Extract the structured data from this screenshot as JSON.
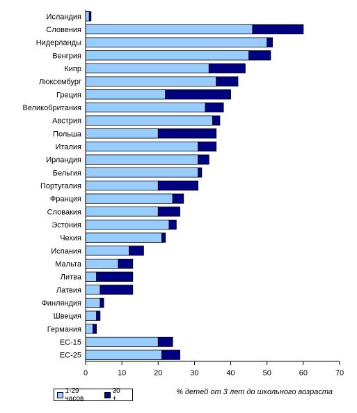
{
  "chart_data": {
    "type": "bar",
    "orientation": "horizontal",
    "stacked": true,
    "categories": [
      "Исландия",
      "Словения",
      "Нидерланды",
      "Венгрия",
      "Кипр",
      "Люксембург",
      "Греция",
      "Великобритания",
      "Австрия",
      "Польша",
      "Италия",
      "Ирландия",
      "Бельгия",
      "Португалия",
      "Франция",
      "Словакия",
      "Эстония",
      "Чехия",
      "Испания",
      "Мальта",
      "Литва",
      "Латвия",
      "Финляндия",
      "Швеция",
      "Германия",
      "ЕС-15",
      "ЕС-25"
    ],
    "series": [
      {
        "name": "1-29 часов",
        "color": "#99ccff",
        "values": [
          1,
          46,
          50,
          45,
          34,
          36,
          22,
          33,
          35,
          20,
          31,
          31,
          31,
          20,
          24,
          20,
          23,
          21,
          12,
          9,
          3,
          4,
          4,
          3,
          2,
          20,
          21
        ]
      },
      {
        "name": "30 +",
        "color": "#000080",
        "values": [
          0.5,
          14,
          1.5,
          6,
          10,
          6,
          18,
          5,
          2,
          16,
          5,
          3,
          1,
          11,
          3,
          6,
          2,
          1,
          4,
          4,
          10,
          9,
          1,
          1,
          1,
          4,
          5
        ]
      }
    ],
    "xlabel": "% детей от 3 лет до школьного возраста",
    "ylabel": "",
    "xlim": [
      0,
      70
    ],
    "xticks": [
      0,
      10,
      20,
      30,
      40,
      50,
      60,
      70
    ],
    "grid": false,
    "legend_position": "bottom-left"
  }
}
